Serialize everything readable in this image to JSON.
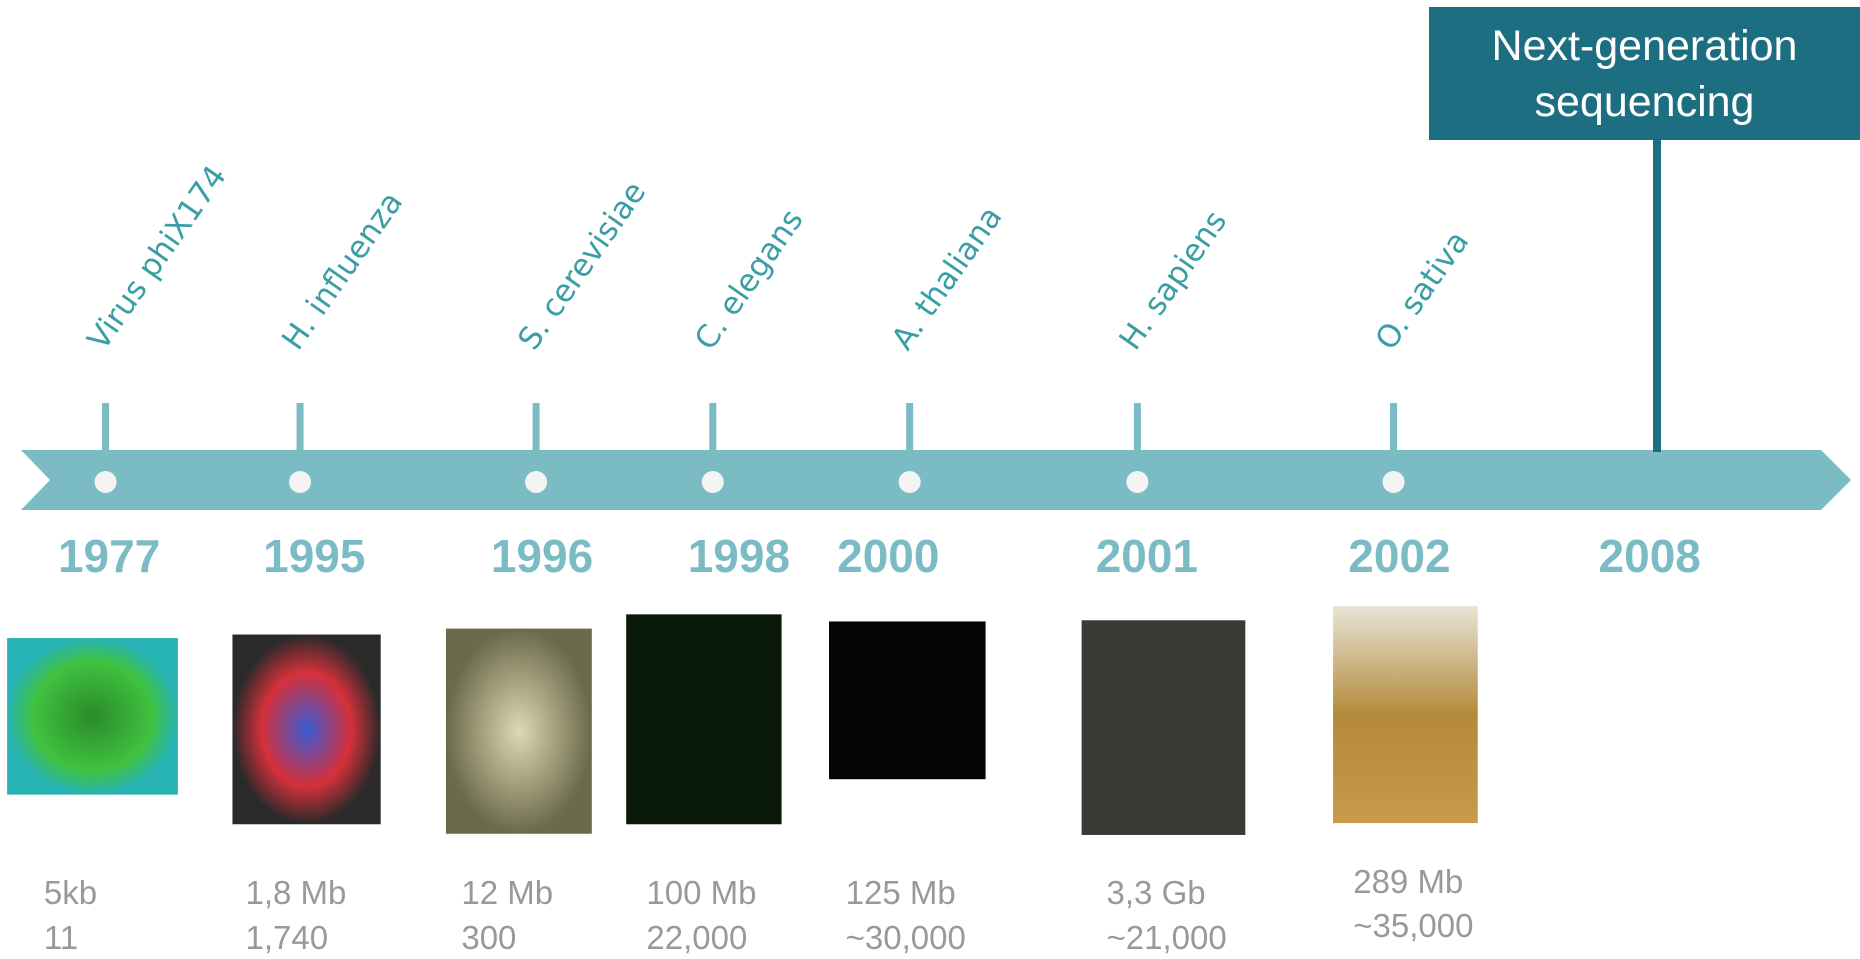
{
  "timeline": {
    "events": [
      {
        "species": "Virus phiX174",
        "year": "1977",
        "size": "5kb",
        "genes": "11"
      },
      {
        "species": "H. influenza",
        "year": "1995",
        "size": "1,8 Mb",
        "genes": "1,740"
      },
      {
        "species": "S. cerevisiae",
        "year": "1996",
        "size": "12 Mb",
        "genes": "300"
      },
      {
        "species": "C. elegans",
        "year": "1998",
        "size": "100 Mb",
        "genes": "22,000"
      },
      {
        "species": "A. thaliana",
        "year": "2000",
        "size": "125 Mb",
        "genes": "~30,000"
      },
      {
        "species": "H. sapiens",
        "year": "2001",
        "size": "3,3 Gb",
        "genes": "~21,000"
      },
      {
        "species": "O. sativa",
        "year": "2002",
        "size": "289 Mb",
        "genes": "~35,000"
      }
    ],
    "ngs": {
      "label": "Next-generation sequencing",
      "year": "2008"
    }
  }
}
